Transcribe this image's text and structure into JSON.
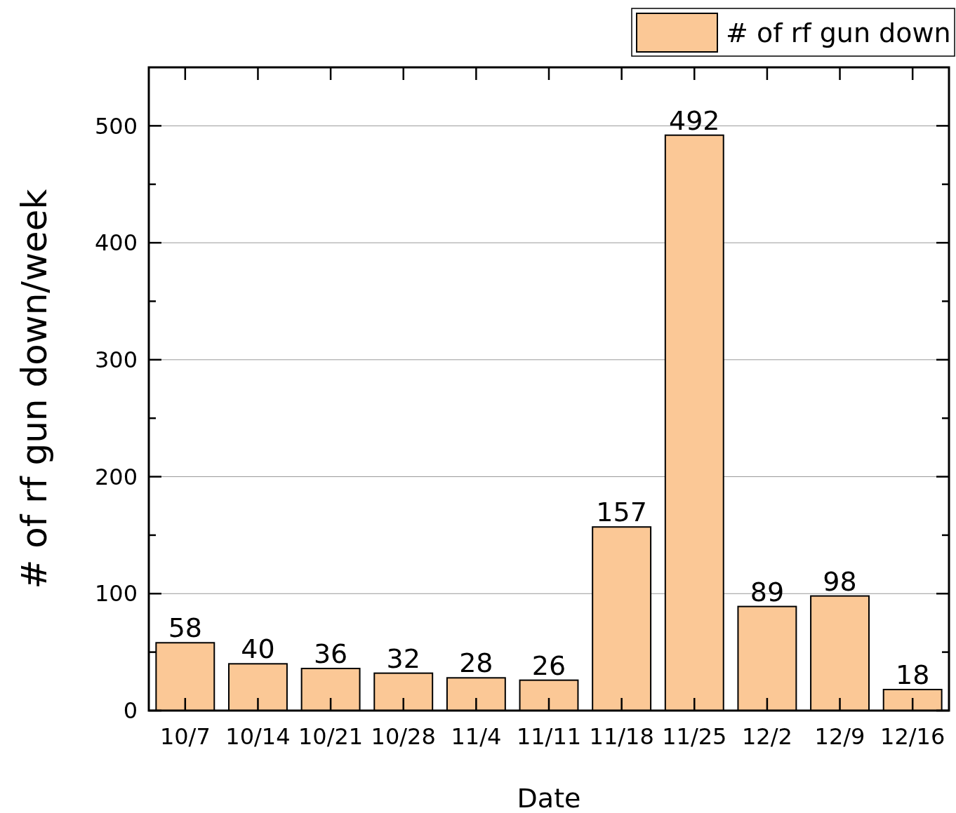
{
  "chart_data": {
    "type": "bar",
    "xlabel": "Date",
    "ylabel": "# of rf gun down/week",
    "categories": [
      "10/7",
      "10/14",
      "10/21",
      "10/28",
      "11/4",
      "11/11",
      "11/18",
      "11/25",
      "12/2",
      "12/9",
      "12/16"
    ],
    "series": [
      {
        "name": "# of rf gun down",
        "color": "#fbc896",
        "values": [
          58,
          40,
          36,
          32,
          28,
          26,
          157,
          492,
          89,
          98,
          18
        ]
      }
    ],
    "ylim": [
      0,
      550
    ],
    "yticks": [
      0,
      {
        "value": 50,
        "label": null
      },
      100,
      {
        "value": 150,
        "label": null
      },
      200,
      {
        "value": 250,
        "label": null
      },
      300,
      {
        "value": 350,
        "label": null
      },
      400,
      {
        "value": 450,
        "label": null
      },
      500
    ],
    "grid": "y",
    "legend": "top right",
    "data_labels": true
  }
}
